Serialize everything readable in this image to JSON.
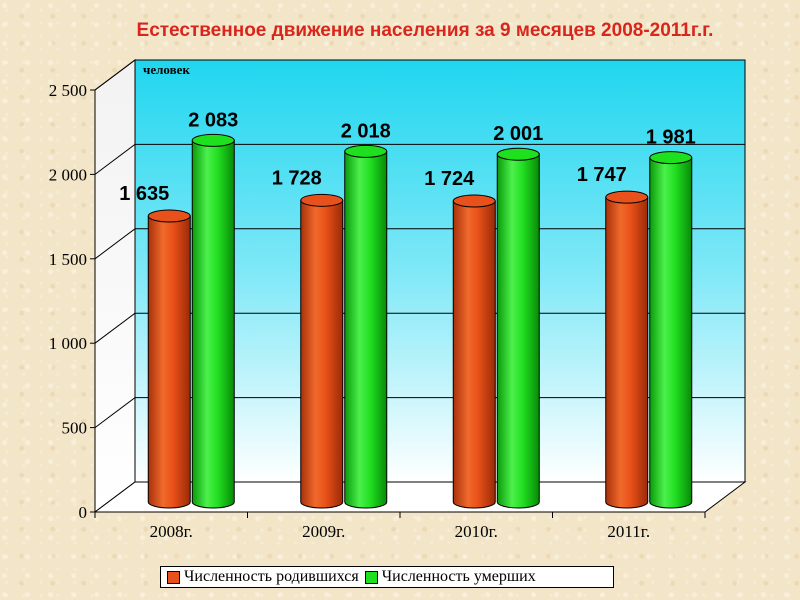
{
  "chart_data": {
    "type": "bar",
    "title": "Естественное движение населения за 9 месяцев 2008-2011г.г.",
    "unit_label": "человек",
    "categories": [
      "2008г.",
      "2009г.",
      "2010г.",
      "2011г."
    ],
    "series": [
      {
        "name": "Численность  родившихся",
        "values": [
          1635,
          1728,
          1724,
          1747
        ],
        "labels": [
          "1 635",
          "1 728",
          "1 724",
          "1 747"
        ],
        "color": "#e8501c"
      },
      {
        "name": "Численность умерших",
        "values": [
          2083,
          2018,
          2001,
          1981
        ],
        "labels": [
          "2 083",
          "2 018",
          "2 001",
          "1 981"
        ],
        "color": "#1ee01e"
      }
    ],
    "ylim": [
      0,
      2500
    ],
    "yticks": [
      0,
      500,
      1000,
      1500,
      2000,
      2500
    ],
    "ytick_labels": [
      "0",
      "500",
      "1 000",
      "1 500",
      "2 000",
      "2 500"
    ],
    "grid": true,
    "legend_position": "bottom",
    "bar_style": "3d-cylinder",
    "wall_color": "#23d8f0"
  }
}
